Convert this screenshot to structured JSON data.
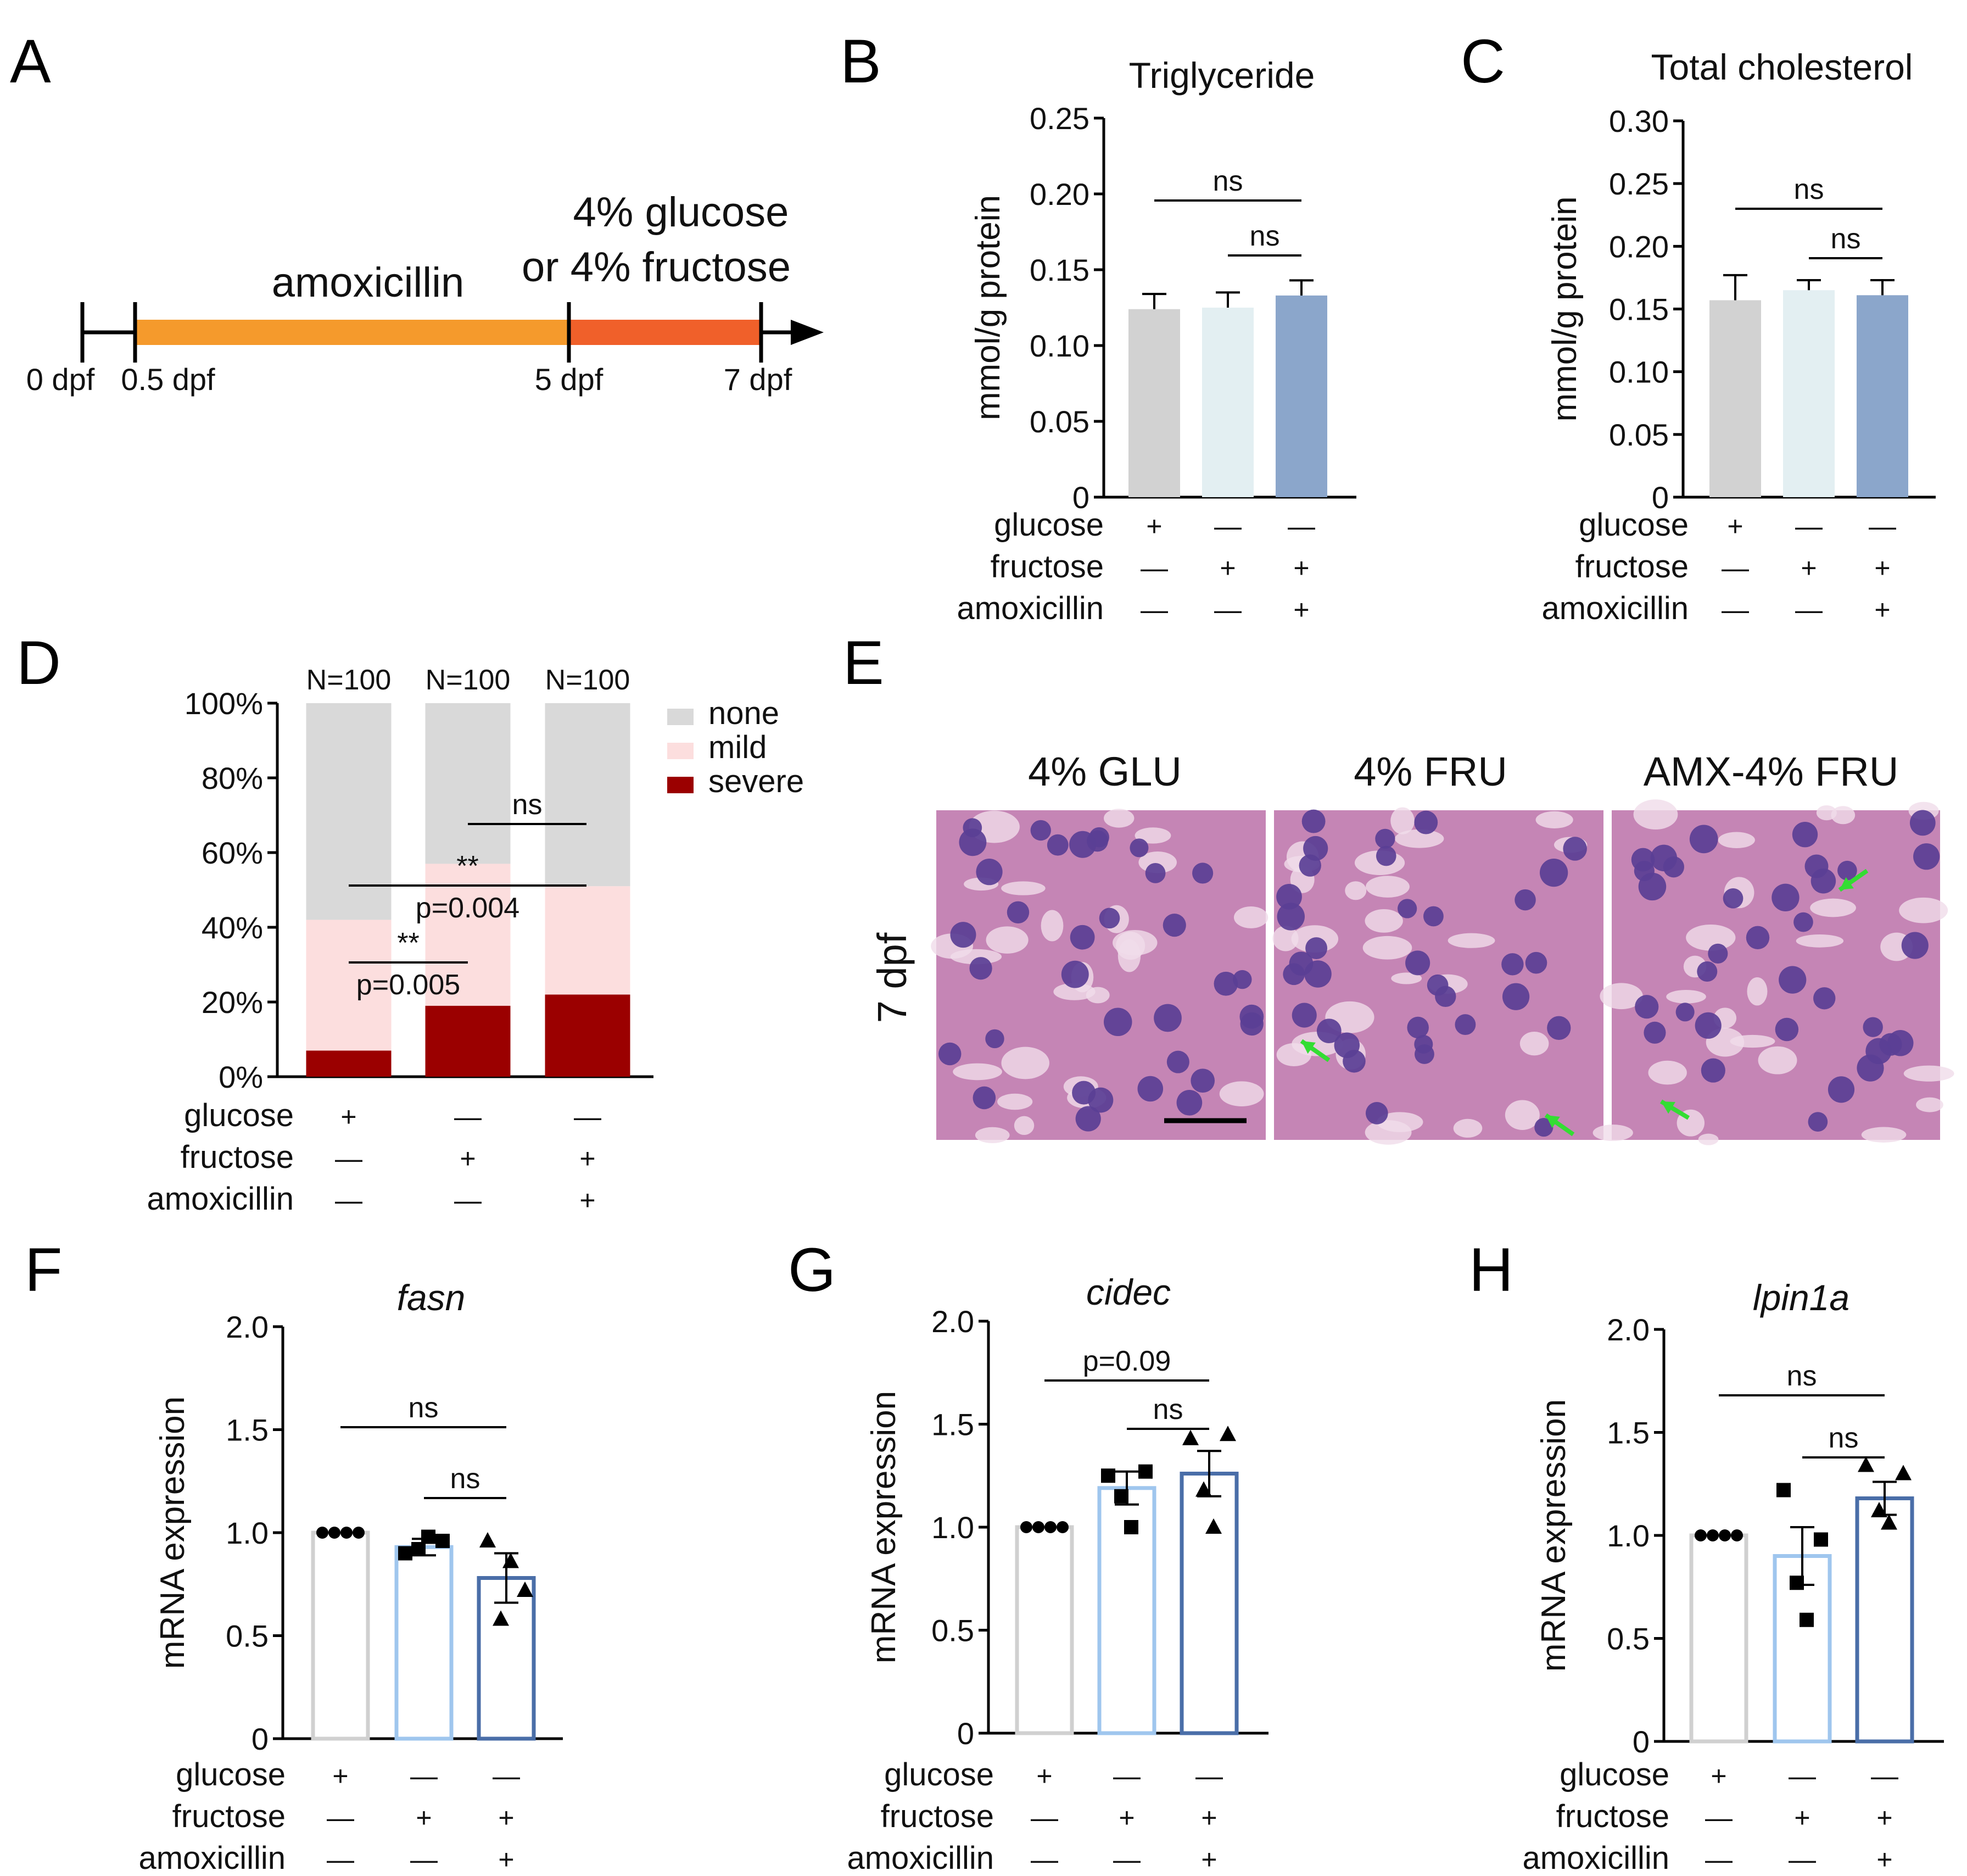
{
  "panels": {
    "A": "A",
    "B": "B",
    "C": "C",
    "D": "D",
    "E": "E",
    "F": "F",
    "G": "G",
    "H": "H"
  },
  "colors": {
    "bar_glu": "#d2d2d2",
    "bar_fru": "#e3eff2",
    "bar_amx": "#8ba6cb",
    "timeline_amx": "#f59a2c",
    "timeline_sugar": "#f0602a",
    "none": "#d9d9d9",
    "mild": "#fcdede",
    "severe": "#9b0000",
    "line_glu": "#d0d0d0",
    "line_fru": "#9fc6ee",
    "line_amx": "#4a6ea8",
    "arrow": "#33dd33",
    "he_bg": "#c585b5"
  },
  "treatment_rows": [
    "glucose",
    "fructose",
    "amoxicillin"
  ],
  "treatment_signs": [
    [
      "+",
      "—",
      "—"
    ],
    [
      "—",
      "+",
      "+"
    ],
    [
      "—",
      "—",
      "+"
    ]
  ],
  "timeline": {
    "amx_label": "amoxicillin",
    "sugar_label_1": "4% glucose",
    "sugar_label_2": "or 4% fructose",
    "ticks": [
      "0 dpf",
      "0.5 dpf",
      "5 dpf",
      "7 dpf"
    ]
  },
  "chart_data": [
    {
      "id": "B",
      "type": "bar",
      "title": "Triglyceride",
      "xlabel": "",
      "ylabel": "mmol/g protein",
      "ylim": [
        0,
        0.25
      ],
      "yticks": [
        "0",
        "0.05",
        "0.10",
        "0.15",
        "0.20",
        "0.25"
      ],
      "categories": [
        "glucose",
        "fructose",
        "amoxicillin-fructose"
      ],
      "values": [
        0.124,
        0.125,
        0.133
      ],
      "errors": [
        0.01,
        0.01,
        0.01
      ],
      "annotations": [
        {
          "text": "ns",
          "from": 0,
          "to": 2
        },
        {
          "text": "ns",
          "from": 1,
          "to": 2
        }
      ]
    },
    {
      "id": "C",
      "type": "bar",
      "title": "Total cholesterol",
      "xlabel": "",
      "ylabel": "mmol/g protein",
      "ylim": [
        0,
        0.3
      ],
      "yticks": [
        "0",
        "0.05",
        "0.10",
        "0.15",
        "0.20",
        "0.25",
        "0.30"
      ],
      "categories": [
        "glucose",
        "fructose",
        "amoxicillin-fructose"
      ],
      "values": [
        0.157,
        0.165,
        0.161
      ],
      "errors": [
        0.02,
        0.008,
        0.012
      ],
      "annotations": [
        {
          "text": "ns",
          "from": 0,
          "to": 2
        },
        {
          "text": "ns",
          "from": 1,
          "to": 2
        }
      ]
    },
    {
      "id": "D",
      "type": "bar",
      "stacked": true,
      "title": "",
      "xlabel": "",
      "ylabel": "",
      "ylim": [
        0,
        100
      ],
      "yticks": [
        "0%",
        "20%",
        "40%",
        "60%",
        "80%",
        "100%"
      ],
      "categories": [
        "glucose",
        "fructose",
        "amoxicillin-fructose"
      ],
      "n_labels": [
        "N=100",
        "N=100",
        "N=100"
      ],
      "series": [
        {
          "name": "severe",
          "values": [
            7,
            19,
            22
          ]
        },
        {
          "name": "mild",
          "values": [
            35,
            38,
            29
          ]
        },
        {
          "name": "none",
          "values": [
            58,
            43,
            49
          ]
        }
      ],
      "legend_order": [
        "none",
        "mild",
        "severe"
      ],
      "legend": "right",
      "annotations": [
        {
          "text": "ns",
          "from": 1,
          "to": 2
        },
        {
          "text": "**",
          "sub": "p=0.004",
          "from": 0,
          "to": 2
        },
        {
          "text": "**",
          "sub": "p=0.005",
          "from": 0,
          "to": 1
        }
      ]
    },
    {
      "id": "F",
      "type": "bar",
      "title": "fasn",
      "xlabel": "",
      "ylabel": "mRNA expression",
      "ylim": [
        0,
        2.0
      ],
      "yticks": [
        "0",
        "0.5",
        "1.0",
        "1.5",
        "2.0"
      ],
      "categories": [
        "glucose",
        "fructose",
        "amoxicillin-fructose"
      ],
      "values": [
        1.0,
        0.93,
        0.78
      ],
      "errors": [
        0,
        0.04,
        0.12
      ],
      "points": [
        [
          1.0,
          1.0,
          1.0,
          1.0
        ],
        [
          0.9,
          0.96,
          0.92,
          0.98
        ],
        [
          0.96,
          0.72,
          0.58,
          0.86
        ]
      ],
      "annotations": [
        {
          "text": "ns",
          "from": 0,
          "to": 2
        },
        {
          "text": "ns",
          "from": 1,
          "to": 2
        }
      ]
    },
    {
      "id": "G",
      "type": "bar",
      "title": "cidec",
      "xlabel": "",
      "ylabel": "mRNA expression",
      "ylim": [
        0,
        2.0
      ],
      "yticks": [
        "0",
        "0.5",
        "1.0",
        "1.5",
        "2.0"
      ],
      "categories": [
        "glucose",
        "fructose",
        "amoxicillin-fructose"
      ],
      "values": [
        1.0,
        1.19,
        1.26
      ],
      "errors": [
        0,
        0.08,
        0.11
      ],
      "points": [
        [
          1.0,
          1.0,
          1.0,
          1.0
        ],
        [
          1.25,
          1.27,
          1.15,
          1.0
        ],
        [
          1.43,
          1.45,
          1.18,
          1.0
        ]
      ],
      "annotations": [
        {
          "text": "p=0.09",
          "from": 0,
          "to": 2
        },
        {
          "text": "ns",
          "from": 1,
          "to": 2
        }
      ]
    },
    {
      "id": "H",
      "type": "bar",
      "title": "lpin1a",
      "xlabel": "",
      "ylabel": "mRNA expression",
      "ylim": [
        0,
        2.0
      ],
      "yticks": [
        "0",
        "0.5",
        "1.0",
        "1.5",
        "2.0"
      ],
      "categories": [
        "glucose",
        "fructose",
        "amoxicillin-fructose"
      ],
      "values": [
        1.0,
        0.9,
        1.18
      ],
      "errors": [
        0,
        0.14,
        0.08
      ],
      "points": [
        [
          1.0,
          1.0,
          1.0,
          1.0
        ],
        [
          1.22,
          0.98,
          0.77,
          0.59
        ],
        [
          1.34,
          1.3,
          1.12,
          1.06
        ]
      ],
      "annotations": [
        {
          "text": "ns",
          "from": 0,
          "to": 2
        },
        {
          "text": "ns",
          "from": 1,
          "to": 2
        }
      ]
    }
  ],
  "histology": {
    "row_label": "7 dpf",
    "titles": [
      "4% GLU",
      "4% FRU",
      "AMX-4% FRU"
    ]
  }
}
